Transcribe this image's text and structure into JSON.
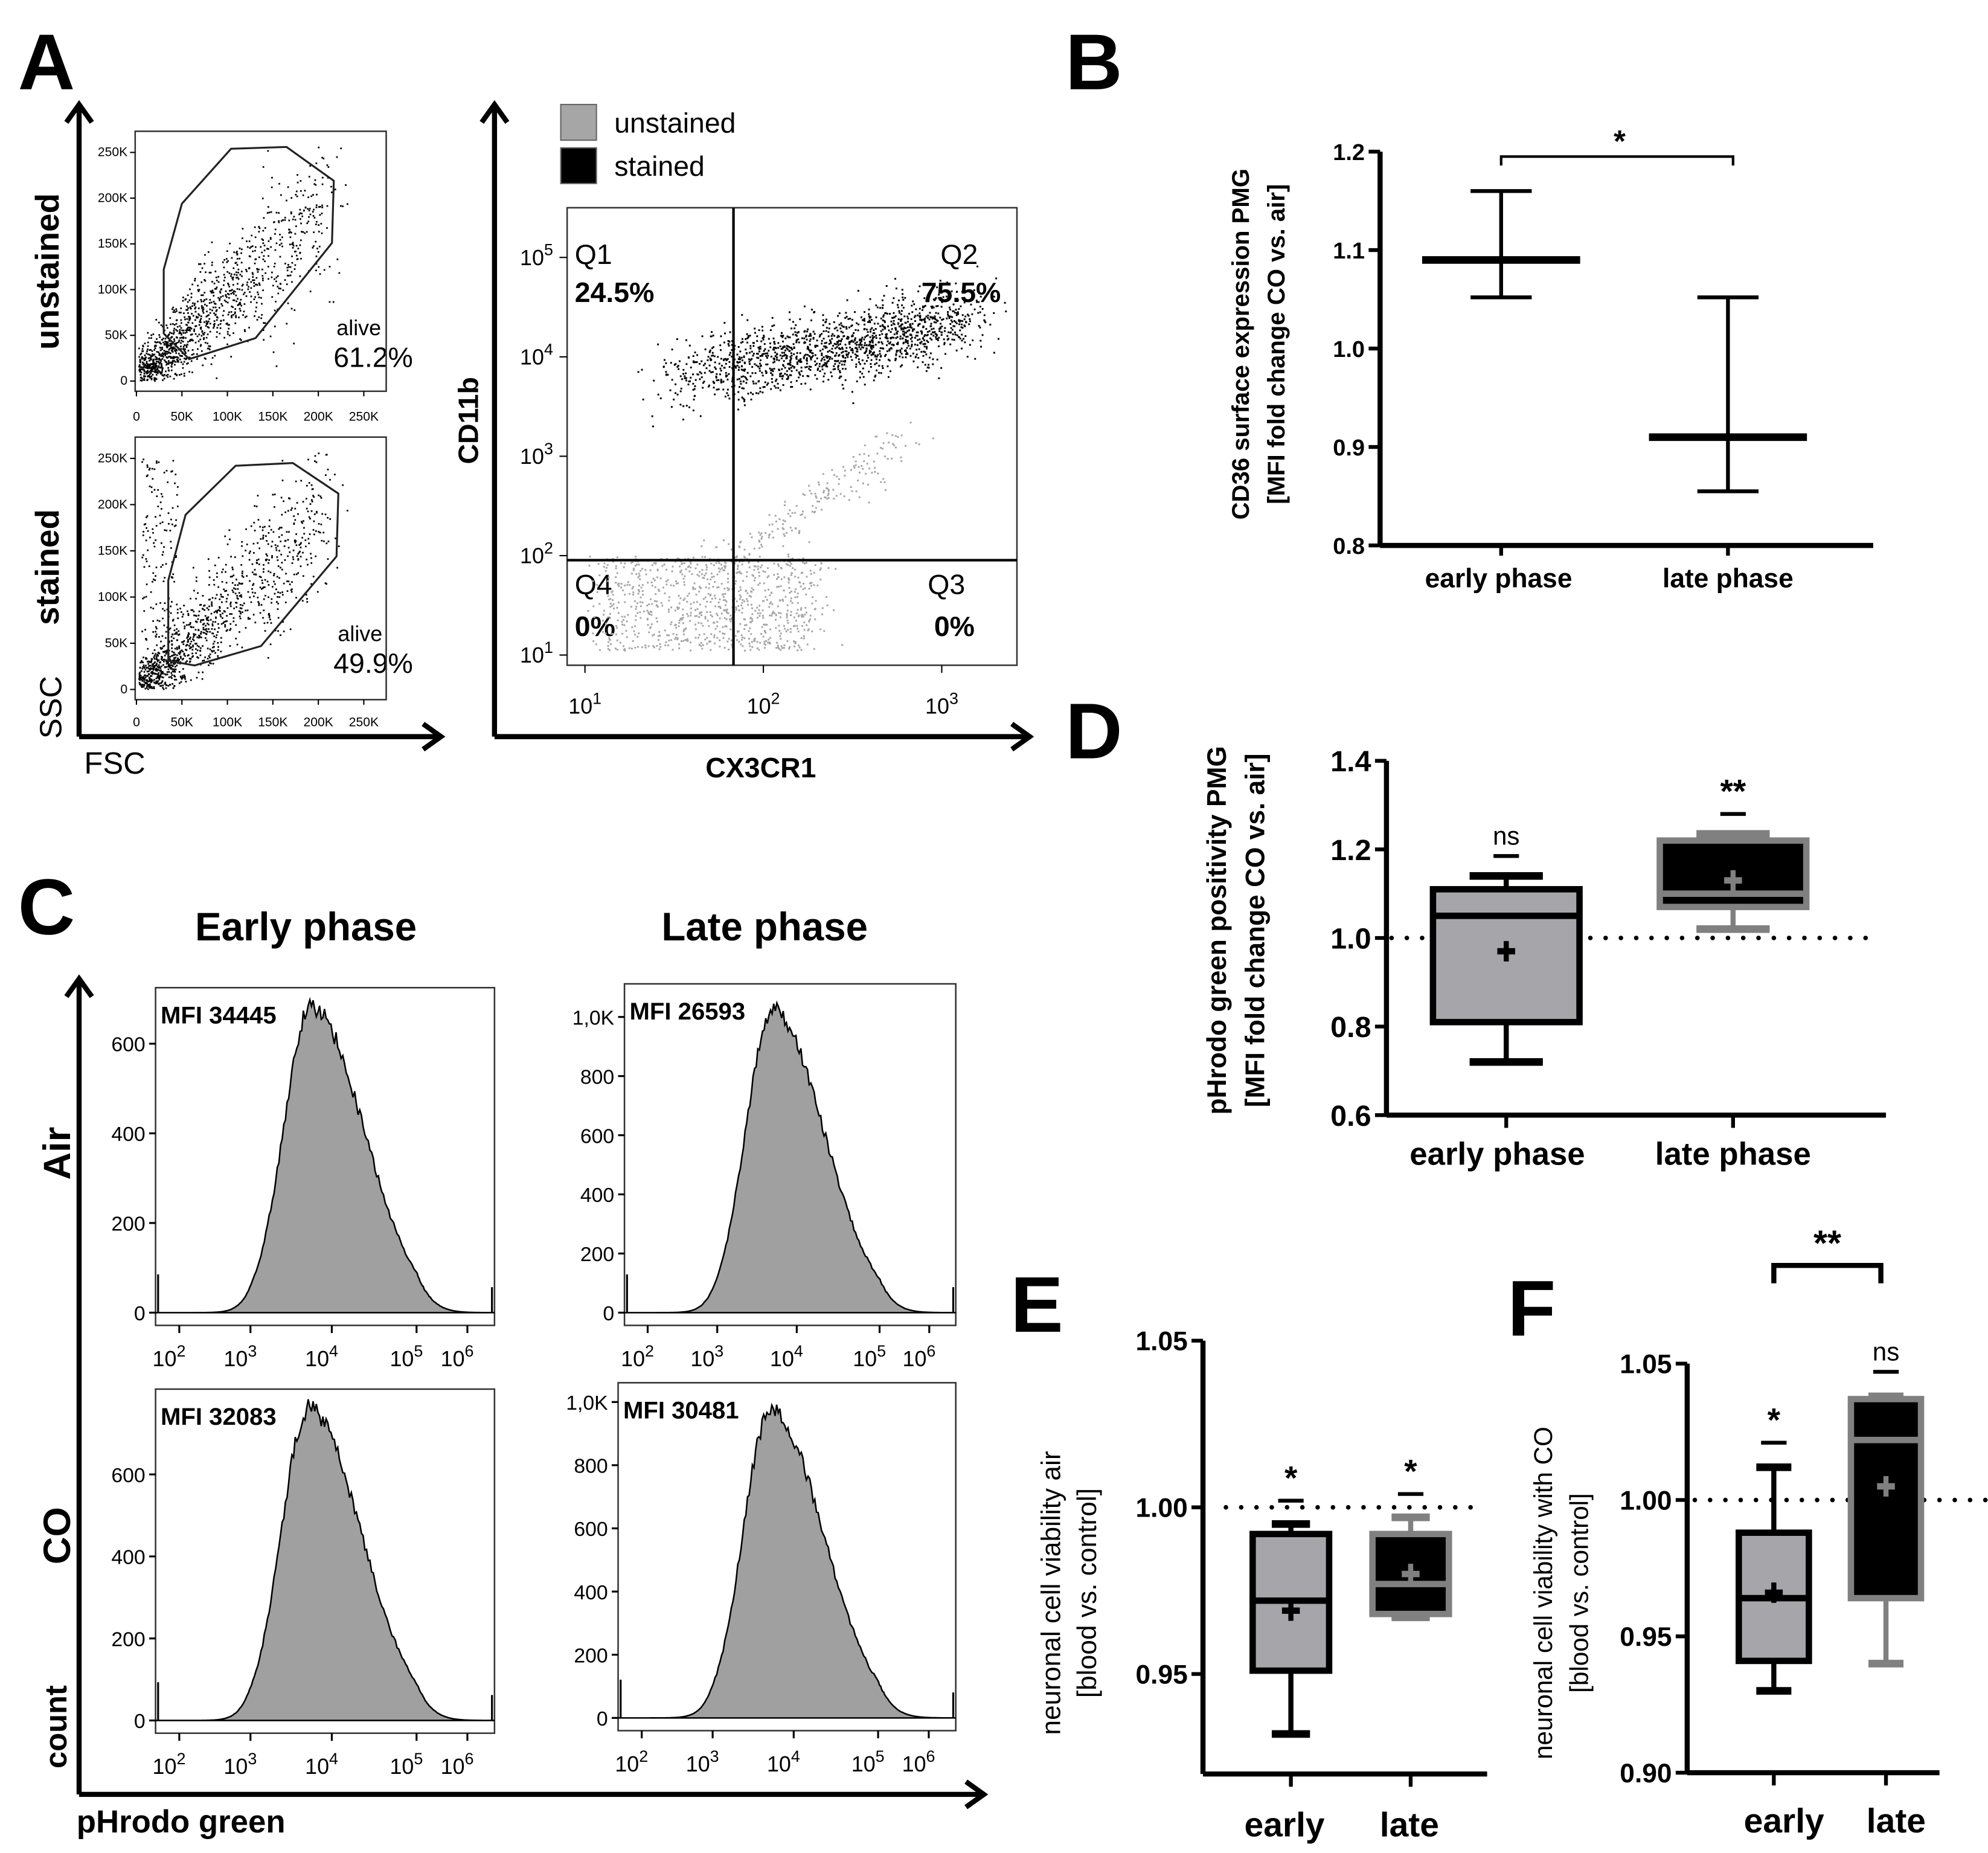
{
  "figure": {
    "panel_letters": {
      "A": "A",
      "B": "B",
      "C": "C",
      "D": "D",
      "E": "E",
      "F": "F"
    },
    "panel_c": {
      "col_titles": [
        "Early phase",
        "Late phase"
      ],
      "row_labels": [
        "Air",
        "CO"
      ],
      "y_axis": "count",
      "x_axis": "pHrodo green"
    }
  },
  "chart_data": [
    {
      "type": "scatter",
      "row_label": "unstained",
      "xlabel": "FSC",
      "ylabel": "SSC",
      "xlim": [
        0,
        262
      ],
      "ylim": [
        0,
        262
      ],
      "x_tick_values": [
        0,
        50,
        100,
        150,
        200,
        250
      ],
      "x_ticks": [
        "0",
        "50K",
        "100K",
        "150K",
        "200K",
        "250K"
      ],
      "y_tick_values": [
        0,
        50,
        100,
        150,
        200,
        250
      ],
      "y_ticks": [
        "0",
        "50K",
        "100K",
        "150K",
        "200K",
        "250K"
      ],
      "gate": {
        "label": "alive",
        "percent": "61.2%",
        "polygon": [
          [
            30,
            122
          ],
          [
            50,
            194
          ],
          [
            104,
            254
          ],
          [
            165,
            256
          ],
          [
            217,
            219
          ],
          [
            215,
            151
          ],
          [
            131,
            47
          ],
          [
            58,
            24
          ],
          [
            30,
            52
          ]
        ]
      }
    },
    {
      "type": "scatter",
      "row_label": "stained",
      "xlabel": "FSC",
      "ylabel": "SSC",
      "xlim": [
        0,
        262
      ],
      "ylim": [
        0,
        262
      ],
      "x_tick_values": [
        0,
        50,
        100,
        150,
        200,
        250
      ],
      "x_ticks": [
        "0",
        "50K",
        "100K",
        "150K",
        "200K",
        "250K"
      ],
      "y_tick_values": [
        0,
        50,
        100,
        150,
        200,
        250
      ],
      "y_ticks": [
        "0",
        "50K",
        "100K",
        "150K",
        "200K",
        "250K"
      ],
      "gate": {
        "label": "alive",
        "percent": "49.9%",
        "polygon": [
          [
            35,
            118
          ],
          [
            54,
            189
          ],
          [
            109,
            242
          ],
          [
            172,
            245
          ],
          [
            222,
            212
          ],
          [
            220,
            144
          ],
          [
            137,
            47
          ],
          [
            64,
            26
          ],
          [
            35,
            31
          ]
        ]
      }
    },
    {
      "type": "scatter",
      "xlabel": "CX3CR1",
      "ylabel": "CD11b",
      "x_scale": "log",
      "y_scale": "log",
      "x_tick_exponents": [
        1,
        2,
        3
      ],
      "y_tick_exponents": [
        1,
        2,
        3,
        4,
        5
      ],
      "tick_base": "10",
      "legend": [
        {
          "label": "unstained",
          "color": "#a6a6a6"
        },
        {
          "label": "stained",
          "color": "#000000"
        }
      ],
      "quadrant_threshold_x": 68,
      "quadrant_threshold_y": 90,
      "quadrants": [
        {
          "name": "Q1",
          "percent": "24.5%"
        },
        {
          "name": "Q2",
          "percent": "75.5%"
        },
        {
          "name": "Q3",
          "percent": "0%"
        },
        {
          "name": "Q4",
          "percent": "0%"
        }
      ]
    },
    {
      "type": "errorbar",
      "ylabel": [
        "CD36 surface expression PMG",
        "[MFI fold change CO vs. air]"
      ],
      "ylim": [
        0.8,
        1.2
      ],
      "y_tick_values": [
        0.8,
        0.9,
        1.0,
        1.1,
        1.2
      ],
      "y_ticks": [
        "0.8",
        "0.9",
        "1.0",
        "1.1",
        "1.2"
      ],
      "categories": [
        "early phase",
        "late phase"
      ],
      "series": [
        {
          "name": "early phase",
          "mean": 1.09,
          "upper": 1.16,
          "lower": 1.052
        },
        {
          "name": "late phase",
          "mean": 0.91,
          "upper": 1.052,
          "lower": 0.855
        }
      ],
      "significance": {
        "label": "*",
        "between": [
          0,
          1
        ],
        "y": 1.195
      }
    },
    {
      "type": "area",
      "row": "Air",
      "column": "Early phase",
      "mfi_label": "MFI 34445",
      "ylim": [
        0,
        725
      ],
      "y_tick_values": [
        0,
        200,
        400,
        600
      ],
      "y_ticks": [
        "0",
        "200",
        "400",
        "600"
      ],
      "x_tick_exponents": [
        2,
        3,
        4,
        5,
        6
      ],
      "tick_base": "10",
      "mode_log10": 3.75,
      "peak_count": 683,
      "color": "#a0a0a0"
    },
    {
      "type": "area",
      "row": "Air",
      "column": "Late phase",
      "mfi_label": "MFI 26593",
      "ylim": [
        0,
        1112
      ],
      "y_tick_values": [
        0,
        200,
        400,
        600,
        800,
        1000
      ],
      "y_ticks": [
        "0",
        "200",
        "400",
        "600",
        "800",
        "1,0K"
      ],
      "x_tick_exponents": [
        2,
        3,
        4,
        5,
        6
      ],
      "tick_base": "10",
      "mode_log10": 3.7,
      "peak_count": 1025,
      "color": "#a0a0a0"
    },
    {
      "type": "area",
      "row": "CO",
      "column": "Early phase",
      "mfi_label": "MFI 32083",
      "ylim": [
        0,
        808
      ],
      "y_tick_values": [
        0,
        200,
        400,
        600
      ],
      "y_ticks": [
        "0",
        "200",
        "400",
        "600"
      ],
      "x_tick_exponents": [
        2,
        3,
        4,
        5,
        6
      ],
      "tick_base": "10",
      "mode_log10": 3.72,
      "peak_count": 762,
      "color": "#a0a0a0"
    },
    {
      "type": "area",
      "row": "CO",
      "column": "Late phase",
      "mfi_label": "MFI 30481",
      "ylim": [
        0,
        1061
      ],
      "y_tick_values": [
        0,
        200,
        400,
        600,
        800,
        1000
      ],
      "y_ticks": [
        "0",
        "200",
        "400",
        "600",
        "800",
        "1,0K"
      ],
      "x_tick_exponents": [
        2,
        3,
        4,
        5,
        6
      ],
      "tick_base": "10",
      "mode_log10": 3.72,
      "peak_count": 980,
      "color": "#a0a0a0"
    },
    {
      "type": "box",
      "ylabel": [
        "pHrodo green positivity PMG",
        "[MFI fold change CO vs. air]"
      ],
      "ylim": [
        0.6,
        1.4
      ],
      "y_tick_values": [
        0.6,
        0.8,
        1.0,
        1.2,
        1.4
      ],
      "y_ticks": [
        "0.6",
        "0.8",
        "1.0",
        "1.2",
        "1.4"
      ],
      "reference_line": 1.0,
      "categories": [
        "early phase",
        "late phase"
      ],
      "series": [
        {
          "name": "early phase",
          "min": 0.72,
          "q1": 0.81,
          "median": 1.05,
          "q3": 1.11,
          "max": 1.14,
          "mean": 0.97,
          "fill": "#a6a5a9",
          "stroke": "#000000",
          "sig": "ns",
          "sig_y": 1.185
        },
        {
          "name": "late phase",
          "min": 1.02,
          "q1": 1.07,
          "median": 1.1,
          "q3": 1.22,
          "max": 1.235,
          "mean": 1.13,
          "fill": "#000000",
          "stroke": "#808080",
          "sig": "**",
          "sig_y": 1.28
        }
      ]
    },
    {
      "type": "box",
      "ylabel": [
        "neuronal cell viability air",
        "[blood vs. control]"
      ],
      "ylim": [
        0.92,
        1.05
      ],
      "y_tick_values": [
        0.95,
        1.0,
        1.05
      ],
      "y_ticks": [
        "0.95",
        "1.00",
        "1.05"
      ],
      "reference_line": 1.0,
      "categories": [
        "early",
        "late"
      ],
      "series": [
        {
          "name": "early",
          "min": 0.932,
          "q1": 0.951,
          "median": 0.972,
          "q3": 0.992,
          "max": 0.995,
          "mean": 0.969,
          "fill": "#a6a5a9",
          "stroke": "#000000",
          "sig": "*",
          "sig_y": 1.002
        },
        {
          "name": "late",
          "min": 0.967,
          "q1": 0.968,
          "median": 0.977,
          "q3": 0.992,
          "max": 0.997,
          "mean": 0.98,
          "fill": "#000000",
          "stroke": "#808080",
          "sig": "*",
          "sig_y": 1.004
        }
      ]
    },
    {
      "type": "box",
      "ylabel": [
        "neuronal cell viability with CO",
        "[blood vs. control]"
      ],
      "ylim": [
        0.9,
        1.05
      ],
      "y_tick_values": [
        0.9,
        0.95,
        1.0,
        1.05
      ],
      "y_ticks": [
        "0.90",
        "0.95",
        "1.00",
        "1.05"
      ],
      "reference_line": 1.0,
      "categories": [
        "early",
        "late"
      ],
      "series": [
        {
          "name": "early",
          "min": 0.93,
          "q1": 0.941,
          "median": 0.964,
          "q3": 0.988,
          "max": 1.012,
          "mean": 0.966,
          "fill": "#a6a5a9",
          "stroke": "#000000",
          "sig": "*",
          "sig_y": 1.021
        },
        {
          "name": "late",
          "min": 0.94,
          "q1": 0.964,
          "median": 1.022,
          "q3": 1.037,
          "max": 1.038,
          "mean": 1.005,
          "fill": "#000000",
          "stroke": "#808080",
          "sig": "ns",
          "sig_y": 1.047
        }
      ],
      "significance": {
        "label": "**",
        "between": [
          0,
          1
        ],
        "y": 1.086
      }
    }
  ]
}
